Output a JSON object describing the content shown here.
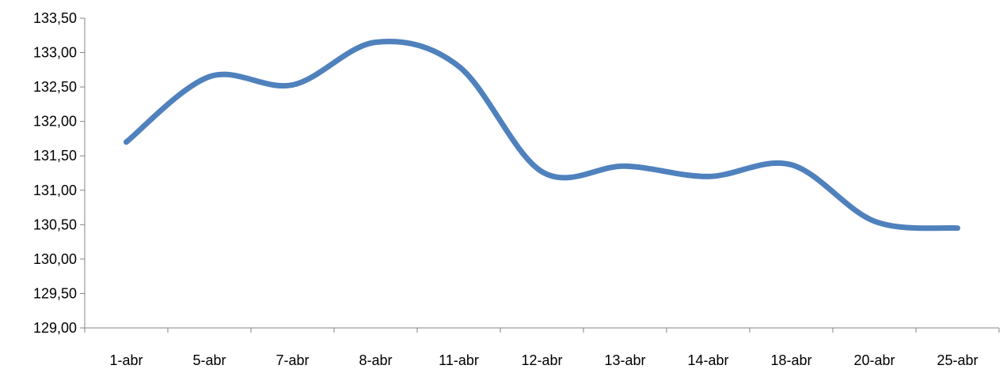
{
  "chart_data": {
    "type": "line",
    "title": "",
    "xlabel": "",
    "ylabel": "",
    "categories": [
      "1-abr",
      "5-abr",
      "7-abr",
      "8-abr",
      "11-abr",
      "12-abr",
      "13-abr",
      "14-abr",
      "18-abr",
      "20-abr",
      "25-abr"
    ],
    "series": [
      {
        "values": [
          131.7,
          132.65,
          132.53,
          133.15,
          132.8,
          131.27,
          131.35,
          131.2,
          131.37,
          130.55,
          130.45
        ],
        "color": "#4f81bd",
        "smooth": true
      }
    ],
    "ylim": [
      129.0,
      133.5
    ],
    "ytick_step": 0.5,
    "yticks": [
      "129,00",
      "129,50",
      "130,00",
      "130,50",
      "131,00",
      "131,50",
      "132,00",
      "132,50",
      "133,00",
      "133,50"
    ],
    "grid": false,
    "legend": "none"
  }
}
